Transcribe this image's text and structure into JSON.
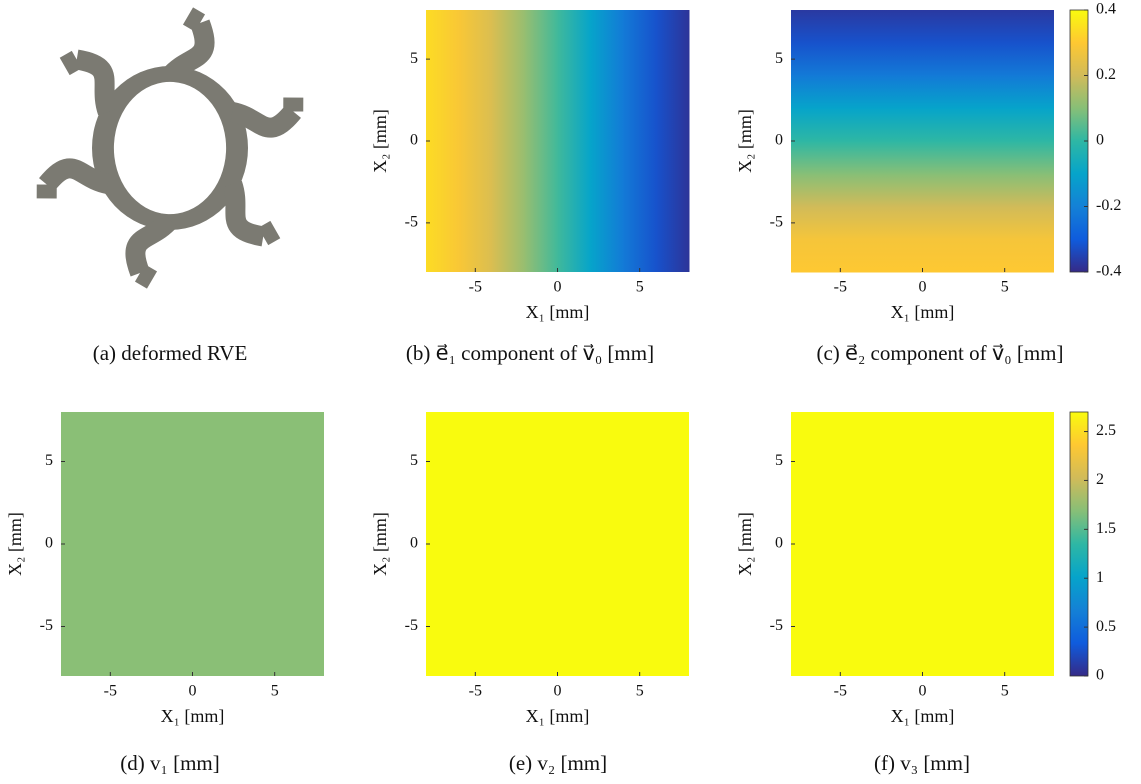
{
  "colormap": [
    "#352a87",
    "#0f5cdd",
    "#1481d6",
    "#06a4ca",
    "#2eb7a4",
    "#87bf77",
    "#d1bb59",
    "#fec832",
    "#f9fb0e"
  ],
  "chart_data": [
    {
      "type": "image",
      "caption": "(a) deformed RVE"
    },
    {
      "type": "heatmap",
      "caption": "(b) e⃗₁ component of v⃗₀ [mm]",
      "xlabel": "X₁ [mm]",
      "ylabel": "X₂ [mm]",
      "xlim": [
        -8,
        8
      ],
      "ylim": [
        -8,
        8
      ],
      "xticks": [
        -5,
        0,
        5
      ],
      "yticks": [
        -5,
        0,
        5
      ],
      "axis": "x",
      "coords": [
        -8,
        -6,
        -4,
        -2,
        0,
        2,
        4,
        6,
        8
      ],
      "values": [
        0.34,
        0.29,
        0.22,
        0.12,
        0.02,
        -0.1,
        -0.22,
        -0.32,
        -0.38
      ],
      "clim": [
        -0.4,
        0.4
      ]
    },
    {
      "type": "heatmap",
      "caption": "(c) e⃗₂ component of v⃗₀ [mm]",
      "xlabel": "X₁ [mm]",
      "ylabel": "X₂ [mm]",
      "xlim": [
        -8,
        8
      ],
      "ylim": [
        -8,
        8
      ],
      "xticks": [
        -5,
        0,
        5
      ],
      "yticks": [
        -5,
        0,
        5
      ],
      "axis": "y",
      "coords": [
        -8,
        -6,
        -4,
        -2,
        0,
        2,
        4,
        6,
        8
      ],
      "values": [
        0.3,
        0.28,
        0.2,
        0.1,
        0.0,
        -0.1,
        -0.22,
        -0.32,
        -0.37
      ],
      "clim": [
        -0.4,
        0.4
      ],
      "colorbar_ticks": [
        -0.4,
        -0.2,
        0,
        0.2,
        0.4
      ]
    },
    {
      "type": "heatmap",
      "caption": "(d) v₁ [mm]",
      "xlabel": "X₁ [mm]",
      "ylabel": "X₂ [mm]",
      "xlim": [
        -8,
        8
      ],
      "ylim": [
        -8,
        8
      ],
      "xticks": [
        -5,
        0,
        5
      ],
      "yticks": [
        -5,
        0,
        5
      ],
      "values": [
        1.7
      ],
      "clim": [
        0,
        2.7
      ]
    },
    {
      "type": "heatmap",
      "caption": "(e) v₂ [mm]",
      "xlabel": "X₁ [mm]",
      "ylabel": "X₂ [mm]",
      "xlim": [
        -8,
        8
      ],
      "ylim": [
        -8,
        8
      ],
      "xticks": [
        -5,
        0,
        5
      ],
      "yticks": [
        -5,
        0,
        5
      ],
      "values": [
        2.7
      ],
      "clim": [
        0,
        2.7
      ]
    },
    {
      "type": "heatmap",
      "caption": "(f) v₃ [mm]",
      "xlabel": "X₁ [mm]",
      "ylabel": "X₂ [mm]",
      "xlim": [
        -8,
        8
      ],
      "ylim": [
        -8,
        8
      ],
      "xticks": [
        -5,
        0,
        5
      ],
      "yticks": [
        -5,
        0,
        5
      ],
      "values": [
        2.7
      ],
      "clim": [
        0,
        2.7
      ],
      "colorbar_ticks": [
        0,
        0.5,
        1,
        1.5,
        2,
        2.5
      ]
    }
  ]
}
